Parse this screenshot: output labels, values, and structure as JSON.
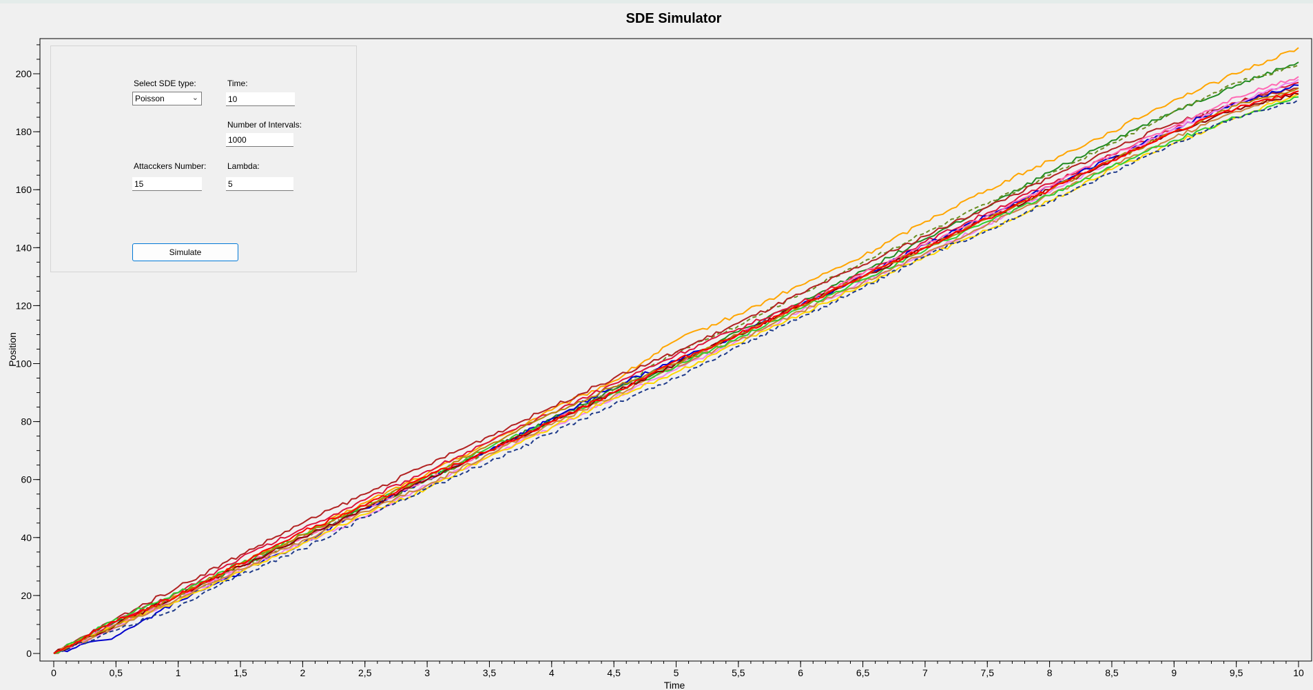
{
  "chart_data": {
    "type": "line",
    "title": "SDE Simulator",
    "xlabel": "Time",
    "ylabel": "Position",
    "xlim": [
      0,
      10
    ],
    "ylim": [
      0,
      210
    ],
    "x_ticks": [
      "0",
      "0,5",
      "1",
      "1,5",
      "2",
      "2,5",
      "3",
      "3,5",
      "4",
      "4,5",
      "5",
      "5,5",
      "6",
      "6,5",
      "7",
      "7,5",
      "8",
      "8,5",
      "9",
      "9,5",
      "10"
    ],
    "y_ticks": [
      "0",
      "20",
      "40",
      "60",
      "80",
      "100",
      "120",
      "140",
      "160",
      "180",
      "200"
    ],
    "grid": false,
    "legend": "none",
    "x": [
      0,
      0.5,
      1,
      1.5,
      2,
      2.5,
      3,
      3.5,
      4,
      4.5,
      5,
      5.5,
      6,
      6.5,
      7,
      7.5,
      8,
      8.5,
      9,
      9.5,
      10
    ],
    "series": [
      {
        "color": "#ffa500",
        "dashed": false,
        "values": [
          0,
          10,
          20,
          31,
          41,
          52,
          62,
          73,
          84,
          94,
          108,
          117,
          127,
          137,
          149,
          160,
          170,
          180,
          191,
          200,
          209
        ]
      },
      {
        "color": "#228b22",
        "dashed": false,
        "values": [
          0,
          11,
          20,
          30,
          40,
          50,
          60,
          70,
          81,
          91,
          100,
          111,
          121,
          132,
          143,
          154,
          166,
          177,
          187,
          196,
          204
        ]
      },
      {
        "color": "#6b8e23",
        "dashed": true,
        "values": [
          0,
          10,
          19,
          30,
          40,
          50,
          60,
          70,
          80,
          91,
          104,
          113,
          124,
          135,
          145,
          155,
          165,
          176,
          187,
          197,
          203
        ]
      },
      {
        "color": "#dc143c",
        "dashed": false,
        "values": [
          0,
          11,
          21,
          33,
          43,
          53,
          63,
          73,
          83,
          93,
          103,
          112,
          121,
          131,
          142,
          152,
          162,
          172,
          181,
          190,
          197
        ]
      },
      {
        "color": "#b22222",
        "dashed": false,
        "values": [
          0,
          12,
          23,
          34,
          45,
          55,
          65,
          75,
          85,
          95,
          104,
          114,
          124,
          134,
          144,
          154,
          164,
          174,
          183,
          190,
          195
        ]
      },
      {
        "color": "#0000cd",
        "dashed": false,
        "values": [
          0,
          6,
          18,
          28,
          38,
          50,
          60,
          70,
          81,
          92,
          101,
          110,
          120,
          130,
          141,
          151,
          161,
          171,
          181,
          190,
          196
        ]
      },
      {
        "color": "#ff69b4",
        "dashed": false,
        "values": [
          0,
          10,
          20,
          30,
          40,
          50,
          60,
          70,
          80,
          90,
          100,
          110,
          120,
          131,
          141,
          151,
          161,
          172,
          182,
          192,
          199
        ]
      },
      {
        "color": "#ee82ee",
        "dashed": false,
        "values": [
          0,
          9,
          19,
          29,
          38,
          47,
          58,
          68,
          78,
          88,
          98,
          108,
          118,
          128,
          138,
          148,
          159,
          170,
          181,
          190,
          198
        ]
      },
      {
        "color": "#ffd700",
        "dashed": false,
        "values": [
          0,
          10,
          18,
          28,
          38,
          48,
          57,
          68,
          78,
          88,
          97,
          107,
          117,
          127,
          137,
          146,
          156,
          167,
          176,
          185,
          193
        ]
      },
      {
        "color": "#cd853f",
        "dashed": false,
        "values": [
          0,
          9,
          19,
          29,
          39,
          49,
          58,
          69,
          79,
          89,
          99,
          108,
          118,
          128,
          138,
          148,
          158,
          168,
          178,
          187,
          194
        ]
      },
      {
        "color": "#32cd32",
        "dashed": false,
        "values": [
          0,
          12,
          21,
          31,
          41,
          51,
          61,
          71,
          80,
          90,
          99,
          109,
          119,
          129,
          139,
          149,
          158,
          168,
          177,
          185,
          192
        ]
      },
      {
        "color": "#8b0000",
        "dashed": false,
        "values": [
          0,
          10,
          20,
          30,
          40,
          50,
          60,
          70,
          80,
          90,
          100,
          110,
          120,
          130,
          140,
          150,
          160,
          170,
          180,
          188,
          193
        ]
      },
      {
        "color": "#1e3a8a",
        "dashed": true,
        "values": [
          0,
          8,
          16,
          27,
          36,
          47,
          57,
          66,
          76,
          86,
          95,
          106,
          116,
          126,
          137,
          146,
          156,
          166,
          176,
          185,
          191
        ]
      },
      {
        "color": "#b8860b",
        "dashed": false,
        "values": [
          0,
          10,
          20,
          31,
          41,
          51,
          61,
          72,
          83,
          92,
          100,
          110,
          120,
          130,
          140,
          150,
          160,
          170,
          180,
          189,
          195
        ]
      },
      {
        "color": "#ff0000",
        "dashed": false,
        "values": [
          0,
          11,
          20,
          31,
          42,
          51,
          61,
          70,
          80,
          90,
          101,
          110,
          120,
          130,
          140,
          150,
          160,
          170,
          180,
          188,
          194
        ]
      }
    ]
  },
  "controls": {
    "sde_type_label": "Select SDE type:",
    "sde_type_value": "Poisson",
    "time_label": "Time:",
    "time_value": "10",
    "intervals_label": "Number of Intervals:",
    "intervals_value": "1000",
    "attackers_label": "Attacckers Number:",
    "attackers_value": "15",
    "lambda_label": "Lambda:",
    "lambda_value": "5",
    "simulate_label": "Simulate"
  }
}
